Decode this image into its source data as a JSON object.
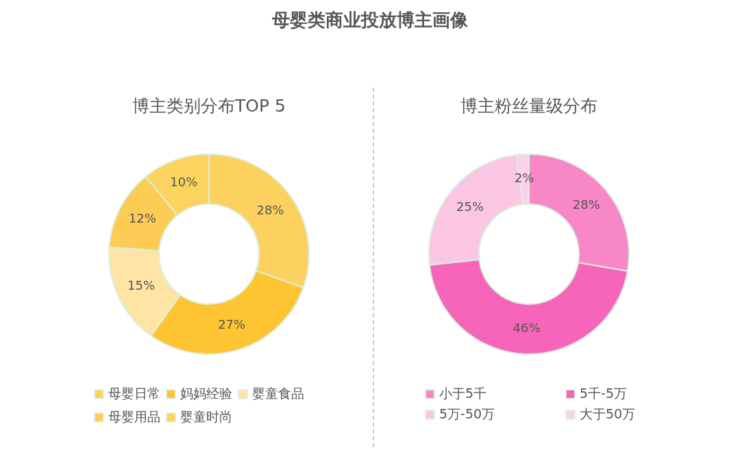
{
  "chart_data": [
    {
      "type": "other",
      "title": "母婴类商业投放博主画像"
    },
    {
      "type": "donut",
      "title": "博主类别分布TOP 5",
      "categories": [
        "母婴日常",
        "妈妈经验",
        "婴童食品",
        "母婴用品",
        "婴童时尚"
      ],
      "values": [
        28,
        27,
        15,
        12,
        10
      ],
      "colors": [
        "#fdd15f",
        "#fec431",
        "#fee4a5",
        "#fdcc55",
        "#fdd35f"
      ],
      "value_labels": [
        "28%",
        "27%",
        "15%",
        "12%",
        "10%"
      ],
      "legend": "bottom"
    },
    {
      "type": "donut",
      "title": "博主粉丝量级分布",
      "categories": [
        "小于5千",
        "5千-5万",
        "5万-50万",
        "大于50万"
      ],
      "values": [
        28,
        46,
        25,
        2
      ],
      "colors": [
        "#f787c6",
        "#f765ba",
        "#fac6e4",
        "#fbd0e8"
      ],
      "value_labels": [
        "28%",
        "46%",
        "25%",
        "2%"
      ],
      "legend": "bottom"
    }
  ]
}
